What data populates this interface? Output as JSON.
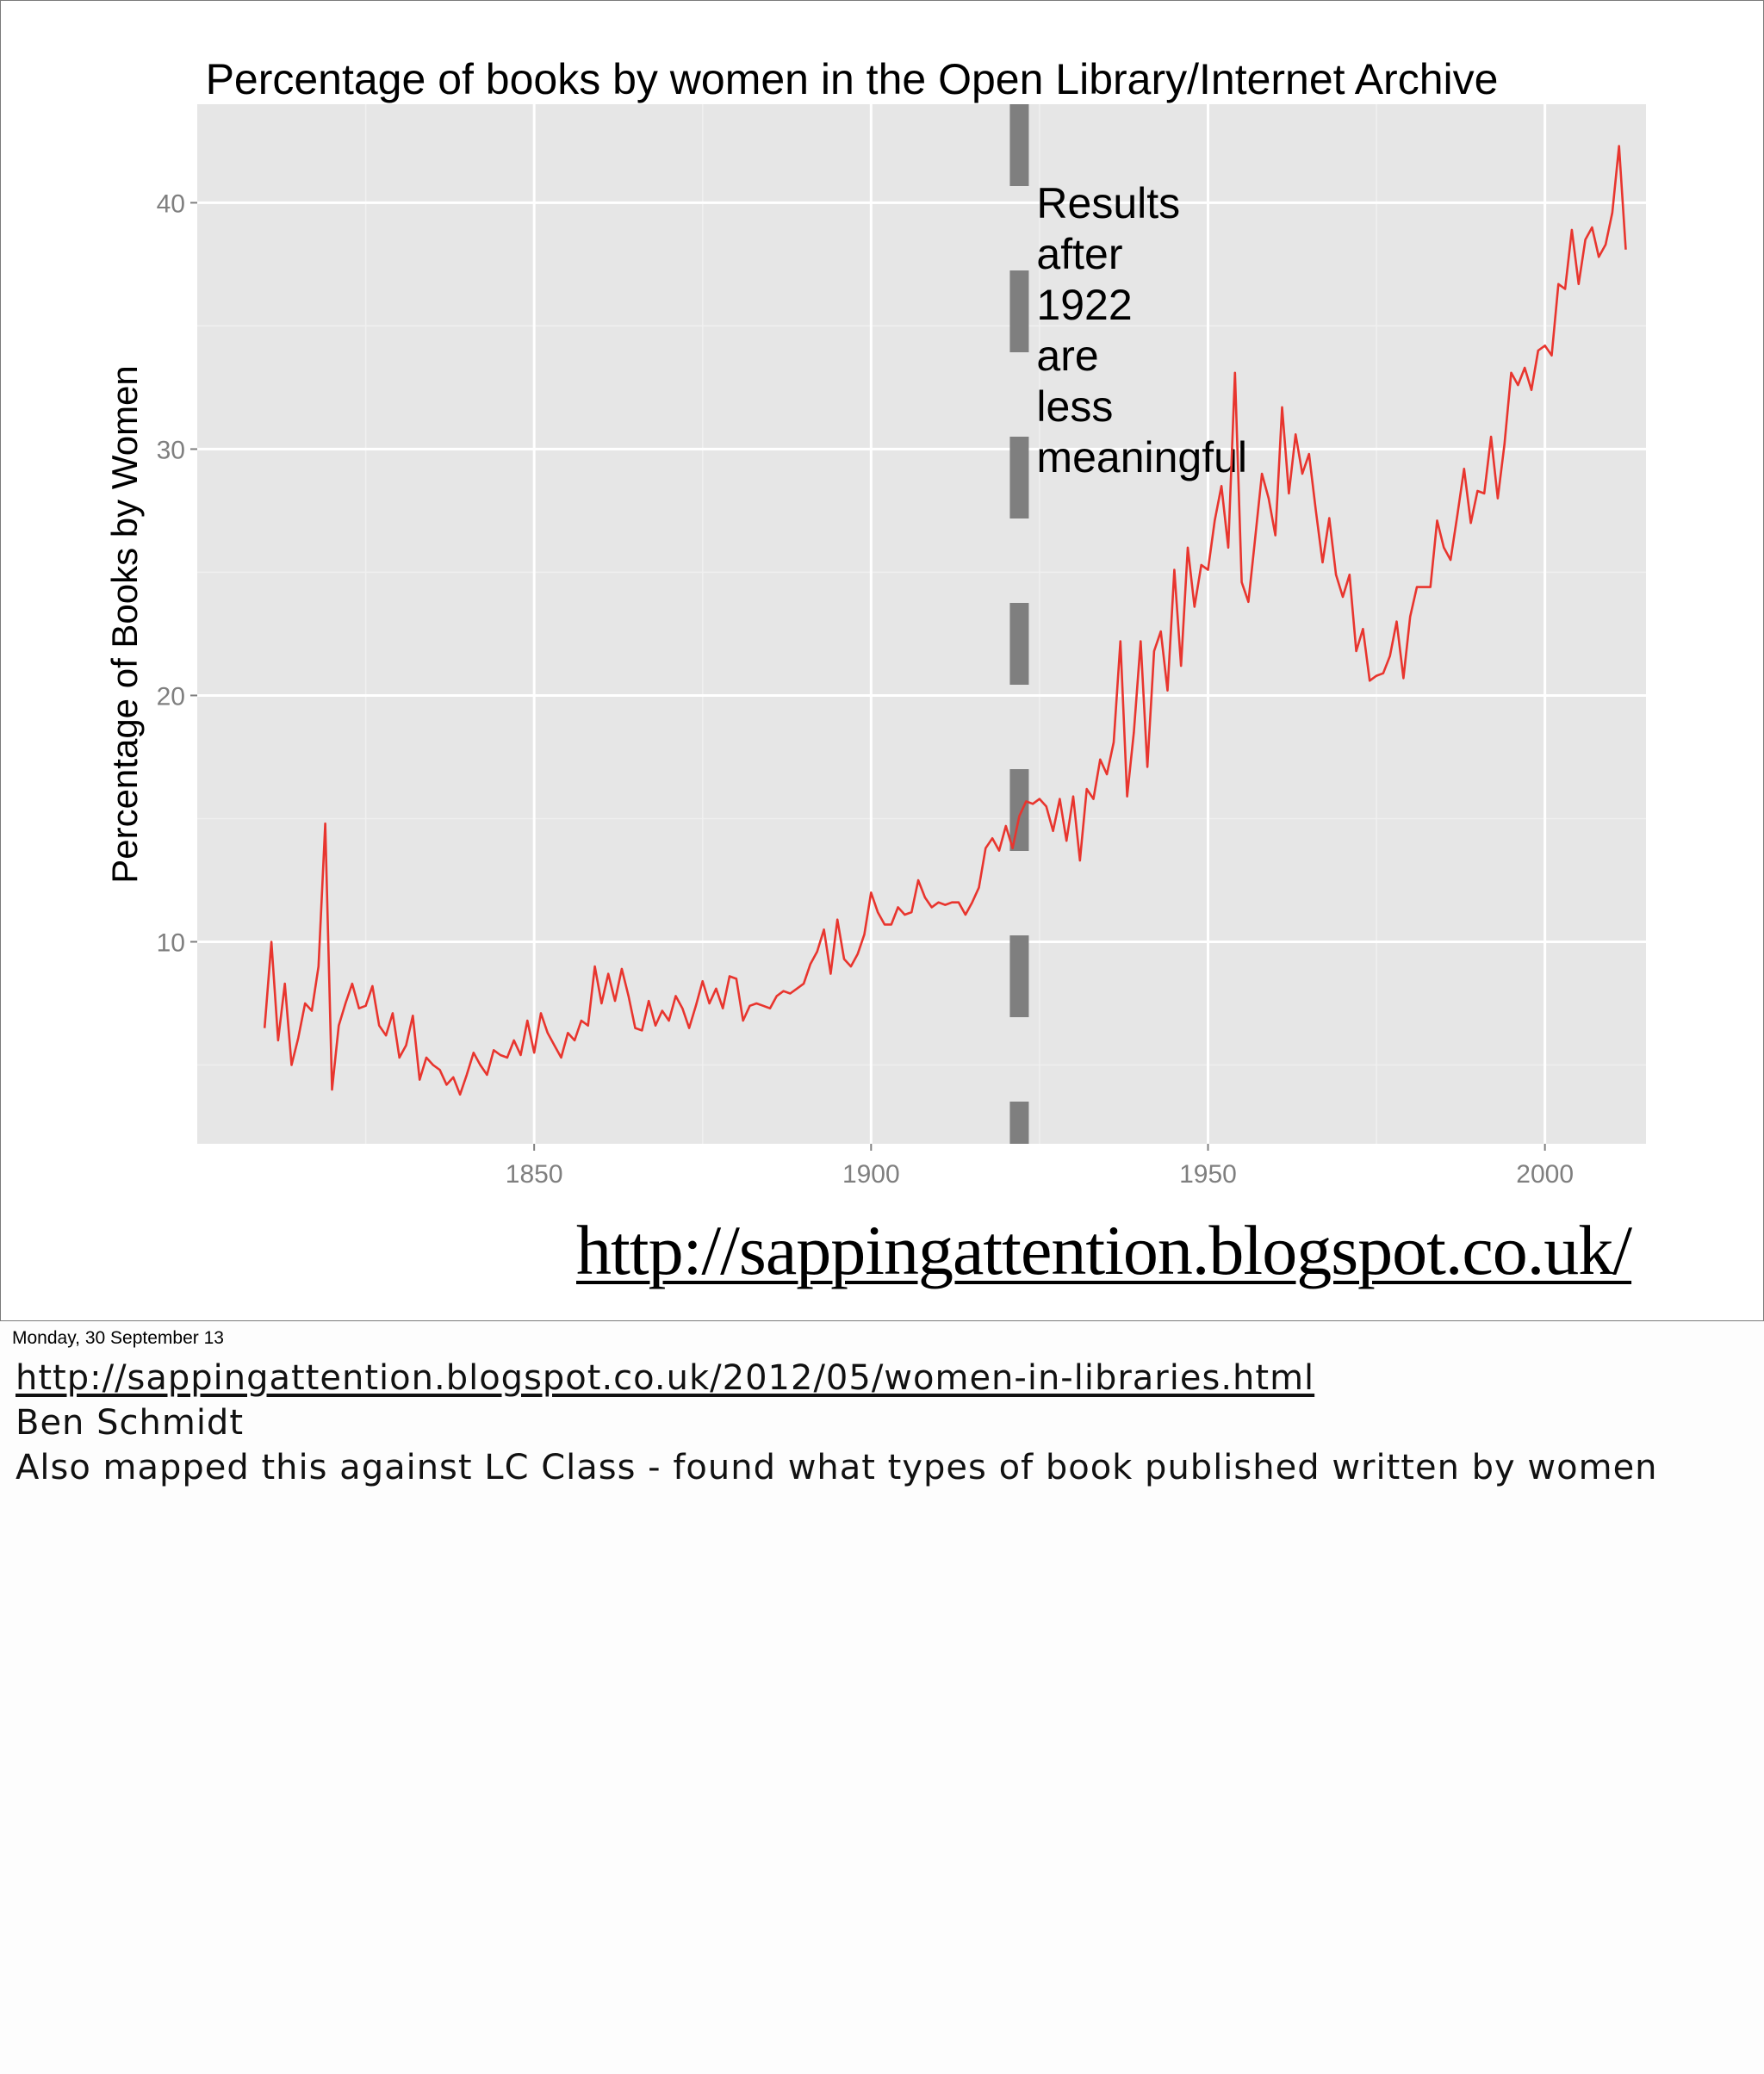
{
  "chart_data": {
    "type": "line",
    "title": "Percentage of books by women in the Open Library/Internet Archive",
    "xlabel": "",
    "ylabel": "Percentage of Books by Women",
    "xlim": [
      1800,
      2015
    ],
    "ylim": [
      1.8,
      44
    ],
    "x_ticks": [
      1850,
      1900,
      1950,
      2000
    ],
    "y_ticks": [
      10,
      20,
      30,
      40
    ],
    "grid": true,
    "reference_line": {
      "x": 1922,
      "style": "dashed"
    },
    "annotation": {
      "lines": [
        "Results",
        "after",
        "1922",
        "are",
        "less",
        "meaningful"
      ]
    },
    "series": [
      {
        "color": "#e8352e",
        "points": [
          [
            1810,
            6.5
          ],
          [
            1811,
            10
          ],
          [
            1812,
            6
          ],
          [
            1813,
            8.3
          ],
          [
            1814,
            5
          ],
          [
            1815,
            6.1
          ],
          [
            1816,
            7.5
          ],
          [
            1817,
            7.2
          ],
          [
            1818,
            9
          ],
          [
            1819,
            14.8
          ],
          [
            1820,
            4
          ],
          [
            1821,
            6.6
          ],
          [
            1822,
            7.5
          ],
          [
            1823,
            8.3
          ],
          [
            1824,
            7.3
          ],
          [
            1825,
            7.4
          ],
          [
            1826,
            8.2
          ],
          [
            1827,
            6.6
          ],
          [
            1828,
            6.2
          ],
          [
            1829,
            7.1
          ],
          [
            1830,
            5.3
          ],
          [
            1831,
            5.8
          ],
          [
            1832,
            7
          ],
          [
            1833,
            4.4
          ],
          [
            1834,
            5.3
          ],
          [
            1835,
            5
          ],
          [
            1836,
            4.8
          ],
          [
            1837,
            4.2
          ],
          [
            1838,
            4.5
          ],
          [
            1839,
            3.8
          ],
          [
            1840,
            4.6
          ],
          [
            1841,
            5.5
          ],
          [
            1842,
            5
          ],
          [
            1843,
            4.6
          ],
          [
            1844,
            5.6
          ],
          [
            1845,
            5.4
          ],
          [
            1846,
            5.3
          ],
          [
            1847,
            6
          ],
          [
            1848,
            5.4
          ],
          [
            1849,
            6.8
          ],
          [
            1850,
            5.5
          ],
          [
            1851,
            7.1
          ],
          [
            1852,
            6.3
          ],
          [
            1853,
            5.8
          ],
          [
            1854,
            5.3
          ],
          [
            1855,
            6.3
          ],
          [
            1856,
            6
          ],
          [
            1857,
            6.8
          ],
          [
            1858,
            6.6
          ],
          [
            1859,
            9
          ],
          [
            1860,
            7.5
          ],
          [
            1861,
            8.7
          ],
          [
            1862,
            7.6
          ],
          [
            1863,
            8.9
          ],
          [
            1864,
            7.8
          ],
          [
            1865,
            6.5
          ],
          [
            1866,
            6.4
          ],
          [
            1867,
            7.6
          ],
          [
            1868,
            6.6
          ],
          [
            1869,
            7.2
          ],
          [
            1870,
            6.8
          ],
          [
            1871,
            7.8
          ],
          [
            1872,
            7.3
          ],
          [
            1873,
            6.5
          ],
          [
            1874,
            7.4
          ],
          [
            1875,
            8.4
          ],
          [
            1876,
            7.5
          ],
          [
            1877,
            8.1
          ],
          [
            1878,
            7.3
          ],
          [
            1879,
            8.6
          ],
          [
            1880,
            8.5
          ],
          [
            1881,
            6.8
          ],
          [
            1882,
            7.4
          ],
          [
            1883,
            7.5
          ],
          [
            1884,
            7.4
          ],
          [
            1885,
            7.3
          ],
          [
            1886,
            7.8
          ],
          [
            1887,
            8
          ],
          [
            1888,
            7.9
          ],
          [
            1889,
            8.1
          ],
          [
            1890,
            8.3
          ],
          [
            1891,
            9.1
          ],
          [
            1892,
            9.6
          ],
          [
            1893,
            10.5
          ],
          [
            1894,
            8.7
          ],
          [
            1895,
            10.9
          ],
          [
            1896,
            9.3
          ],
          [
            1897,
            9
          ],
          [
            1898,
            9.5
          ],
          [
            1899,
            10.3
          ],
          [
            1900,
            12
          ],
          [
            1901,
            11.2
          ],
          [
            1902,
            10.7
          ],
          [
            1903,
            10.7
          ],
          [
            1904,
            11.4
          ],
          [
            1905,
            11.1
          ],
          [
            1906,
            11.2
          ],
          [
            1907,
            12.5
          ],
          [
            1908,
            11.8
          ],
          [
            1909,
            11.4
          ],
          [
            1910,
            11.6
          ],
          [
            1911,
            11.5
          ],
          [
            1912,
            11.6
          ],
          [
            1913,
            11.6
          ],
          [
            1914,
            11.1
          ],
          [
            1915,
            11.6
          ],
          [
            1916,
            12.2
          ],
          [
            1917,
            13.8
          ],
          [
            1918,
            14.2
          ],
          [
            1919,
            13.7
          ],
          [
            1920,
            14.7
          ],
          [
            1921,
            13.8
          ],
          [
            1922,
            15.1
          ],
          [
            1923,
            15.7
          ],
          [
            1924,
            15.6
          ],
          [
            1925,
            15.8
          ],
          [
            1926,
            15.5
          ],
          [
            1927,
            14.5
          ],
          [
            1928,
            15.8
          ],
          [
            1929,
            14.1
          ],
          [
            1930,
            15.9
          ],
          [
            1931,
            13.3
          ],
          [
            1932,
            16.2
          ],
          [
            1933,
            15.8
          ],
          [
            1934,
            17.4
          ],
          [
            1935,
            16.8
          ],
          [
            1936,
            18.1
          ],
          [
            1937,
            22.2
          ],
          [
            1938,
            15.9
          ],
          [
            1939,
            18.5
          ],
          [
            1940,
            22.2
          ],
          [
            1941,
            17.1
          ],
          [
            1942,
            21.8
          ],
          [
            1943,
            22.6
          ],
          [
            1944,
            20.2
          ],
          [
            1945,
            25.1
          ],
          [
            1946,
            21.2
          ],
          [
            1947,
            26
          ],
          [
            1948,
            23.6
          ],
          [
            1949,
            25.3
          ],
          [
            1950,
            25.1
          ],
          [
            1951,
            27.1
          ],
          [
            1952,
            28.5
          ],
          [
            1953,
            26
          ],
          [
            1954,
            33.1
          ],
          [
            1955,
            24.6
          ],
          [
            1956,
            23.8
          ],
          [
            1957,
            26.4
          ],
          [
            1958,
            29
          ],
          [
            1959,
            28
          ],
          [
            1960,
            26.5
          ],
          [
            1961,
            31.7
          ],
          [
            1962,
            28.2
          ],
          [
            1963,
            30.6
          ],
          [
            1964,
            29
          ],
          [
            1965,
            29.8
          ],
          [
            1966,
            27.5
          ],
          [
            1967,
            25.4
          ],
          [
            1968,
            27.2
          ],
          [
            1969,
            24.9
          ],
          [
            1970,
            24
          ],
          [
            1971,
            24.9
          ],
          [
            1972,
            21.8
          ],
          [
            1973,
            22.7
          ],
          [
            1974,
            20.6
          ],
          [
            1975,
            20.8
          ],
          [
            1976,
            20.9
          ],
          [
            1977,
            21.6
          ],
          [
            1978,
            23
          ],
          [
            1979,
            20.7
          ],
          [
            1980,
            23.2
          ],
          [
            1981,
            24.4
          ],
          [
            1982,
            24.4
          ],
          [
            1983,
            24.4
          ],
          [
            1984,
            27.1
          ],
          [
            1985,
            26
          ],
          [
            1986,
            25.5
          ],
          [
            1987,
            27.3
          ],
          [
            1988,
            29.2
          ],
          [
            1989,
            27
          ],
          [
            1990,
            28.3
          ],
          [
            1991,
            28.2
          ],
          [
            1992,
            30.5
          ],
          [
            1993,
            28
          ],
          [
            1994,
            30.2
          ],
          [
            1995,
            33.1
          ],
          [
            1996,
            32.6
          ],
          [
            1997,
            33.3
          ],
          [
            1998,
            32.4
          ],
          [
            1999,
            34
          ],
          [
            2000,
            34.2
          ],
          [
            2001,
            33.8
          ],
          [
            2002,
            36.7
          ],
          [
            2003,
            36.5
          ],
          [
            2004,
            38.9
          ],
          [
            2005,
            36.7
          ],
          [
            2006,
            38.5
          ],
          [
            2007,
            39
          ],
          [
            2008,
            37.8
          ],
          [
            2009,
            38.3
          ],
          [
            2010,
            39.6
          ],
          [
            2011,
            42.3
          ],
          [
            2012,
            38.1
          ]
        ]
      }
    ]
  },
  "slide": {
    "link": "http://sappingattention.blogspot.co.uk/"
  },
  "footer": {
    "date": "Monday, 30 September 13"
  },
  "notes": {
    "link": "http://sappingattention.blogspot.co.uk/2012/05/women-in-libraries.html",
    "author": "Ben Schmidt",
    "text": "Also mapped this against LC Class - found what types of book published written by women"
  }
}
